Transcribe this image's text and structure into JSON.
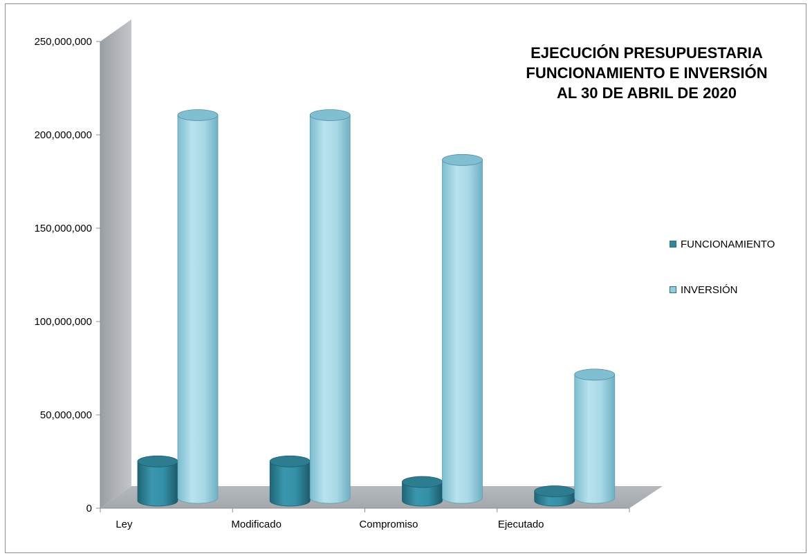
{
  "chart_data": {
    "type": "bar",
    "style": "3d-cylinder",
    "title_lines": [
      "EJECUCIÓN PRESUPUESTARIA",
      "FUNCIONAMIENTO E INVERSIÓN",
      "AL 30 DE ABRIL DE 2020"
    ],
    "categories": [
      "Ley",
      "Modificado",
      "Compromiso",
      "Ejecutado"
    ],
    "series": [
      {
        "name": "FUNCIONAMIENTO",
        "color": "#31859C",
        "values": [
          21000000,
          21000000,
          10000000,
          5000000
        ]
      },
      {
        "name": "INVERSIÓN",
        "color": "#93CDDD",
        "values": [
          205000000,
          205000000,
          181000000,
          66000000
        ]
      }
    ],
    "y_ticks": [
      "0",
      "50,000,000",
      "100,000,000",
      "150,000,000",
      "200,000,000",
      "250,000,000"
    ],
    "ylim": [
      0,
      250000000
    ],
    "legend_position": "right",
    "gridlines": false
  }
}
